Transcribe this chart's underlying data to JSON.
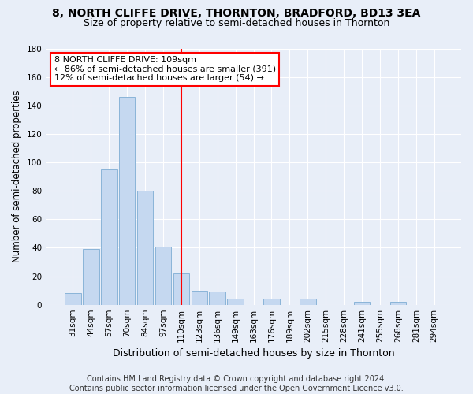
{
  "title": "8, NORTH CLIFFE DRIVE, THORNTON, BRADFORD, BD13 3EA",
  "subtitle": "Size of property relative to semi-detached houses in Thornton",
  "xlabel": "Distribution of semi-detached houses by size in Thornton",
  "ylabel": "Number of semi-detached properties",
  "categories": [
    "31sqm",
    "44sqm",
    "57sqm",
    "70sqm",
    "84sqm",
    "97sqm",
    "110sqm",
    "123sqm",
    "136sqm",
    "149sqm",
    "163sqm",
    "176sqm",
    "189sqm",
    "202sqm",
    "215sqm",
    "228sqm",
    "241sqm",
    "255sqm",
    "268sqm",
    "281sqm",
    "294sqm"
  ],
  "values": [
    8,
    39,
    95,
    146,
    80,
    41,
    22,
    10,
    9,
    4,
    0,
    4,
    0,
    4,
    0,
    0,
    2,
    0,
    2,
    0,
    0
  ],
  "bar_color": "#c5d8f0",
  "bar_edge_color": "#8ab4d8",
  "red_line_index": 6,
  "annotation_text": "8 NORTH CLIFFE DRIVE: 109sqm\n← 86% of semi-detached houses are smaller (391)\n12% of semi-detached houses are larger (54) →",
  "annotation_box_color": "white",
  "annotation_box_edge_color": "red",
  "ylim": [
    0,
    180
  ],
  "yticks": [
    0,
    20,
    40,
    60,
    80,
    100,
    120,
    140,
    160,
    180
  ],
  "footer": "Contains HM Land Registry data © Crown copyright and database right 2024.\nContains public sector information licensed under the Open Government Licence v3.0.",
  "bg_color": "#e8eef8",
  "plot_bg_color": "#e8eef8",
  "grid_color": "white",
  "title_fontsize": 10,
  "subtitle_fontsize": 9,
  "tick_fontsize": 7.5,
  "ylabel_fontsize": 8.5,
  "xlabel_fontsize": 9,
  "footer_fontsize": 7,
  "ann_fontsize": 8
}
